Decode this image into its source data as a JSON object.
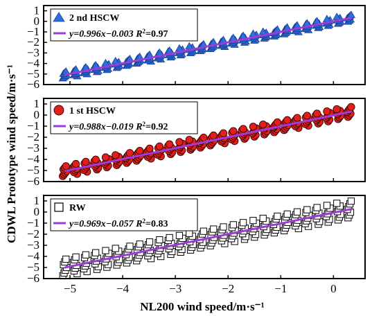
{
  "chart_data": [
    {
      "type": "scatter",
      "panel": "top",
      "series": [
        {
          "name": "2 nd HSCW",
          "marker": "triangle",
          "color": "#2e6fe0",
          "x": [
            -5.1,
            -4.9,
            -4.7,
            -4.5,
            -4.3,
            -4.1,
            -3.9,
            -3.7,
            -3.5,
            -3.3,
            -3.1,
            -2.9,
            -2.7,
            -2.5,
            -2.3,
            -2.1,
            -1.9,
            -1.7,
            -1.5,
            -1.3,
            -1.1,
            -0.9,
            -0.7,
            -0.5,
            -0.3,
            -0.1,
            0.1,
            0.3
          ],
          "y": [
            -5.1,
            -4.9,
            -4.7,
            -4.5,
            -4.3,
            -4.1,
            -3.9,
            -3.7,
            -3.5,
            -3.3,
            -3.1,
            -2.9,
            -2.7,
            -2.5,
            -2.3,
            -2.1,
            -1.9,
            -1.7,
            -1.5,
            -1.3,
            -1.1,
            -0.9,
            -0.7,
            -0.5,
            -0.3,
            -0.1,
            0.1,
            0.3
          ]
        }
      ],
      "fit": {
        "slope": 0.996,
        "intercept": -0.003,
        "color": "#9b3dd6",
        "equation": "y=0.996x−0.003",
        "r2_label": "R",
        "r2_value": "=0.97"
      },
      "y_ticks": [
        "1",
        "0",
        "−1",
        "−2",
        "−3",
        "−4",
        "−5",
        "−6"
      ],
      "ylim": [
        -6,
        1.5
      ],
      "xlim": [
        -5.5,
        0.6
      ]
    },
    {
      "type": "scatter",
      "panel": "middle",
      "series": [
        {
          "name": "1 st HSCW",
          "marker": "circle",
          "color": "#e0201b",
          "x": [
            -5.1,
            -4.9,
            -4.7,
            -4.5,
            -4.3,
            -4.1,
            -3.9,
            -3.7,
            -3.5,
            -3.3,
            -3.1,
            -2.9,
            -2.7,
            -2.5,
            -2.3,
            -2.1,
            -1.9,
            -1.7,
            -1.5,
            -1.3,
            -1.1,
            -0.9,
            -0.7,
            -0.5,
            -0.3,
            -0.1,
            0.1,
            0.3
          ],
          "y": [
            -5.1,
            -4.9,
            -4.7,
            -4.5,
            -4.3,
            -4.1,
            -3.9,
            -3.7,
            -3.5,
            -3.3,
            -3.1,
            -2.9,
            -2.7,
            -2.5,
            -2.3,
            -2.1,
            -1.9,
            -1.7,
            -1.5,
            -1.3,
            -1.1,
            -0.9,
            -0.7,
            -0.5,
            -0.3,
            -0.1,
            0.1,
            0.3
          ]
        }
      ],
      "fit": {
        "slope": 0.988,
        "intercept": -0.019,
        "color": "#9b3dd6",
        "equation": "y=0.988x−0.019",
        "r2_label": "R",
        "r2_value": "=0.92"
      },
      "y_ticks": [
        "1",
        "0",
        "−1",
        "−2",
        "−3",
        "−4",
        "−5",
        "−6"
      ],
      "ylim": [
        -6,
        1.5
      ],
      "xlim": [
        -5.5,
        0.6
      ]
    },
    {
      "type": "scatter",
      "panel": "bottom",
      "series": [
        {
          "name": "RW",
          "marker": "square",
          "color": "#000000",
          "x": [
            -5.1,
            -4.9,
            -4.7,
            -4.5,
            -4.3,
            -4.1,
            -3.9,
            -3.7,
            -3.5,
            -3.3,
            -3.1,
            -2.9,
            -2.7,
            -2.5,
            -2.3,
            -2.1,
            -1.9,
            -1.7,
            -1.5,
            -1.3,
            -1.1,
            -0.9,
            -0.7,
            -0.5,
            -0.3,
            -0.1,
            0.1,
            0.3
          ],
          "y": [
            -5.1,
            -4.9,
            -4.7,
            -4.5,
            -4.3,
            -4.1,
            -3.9,
            -3.7,
            -3.5,
            -3.3,
            -3.1,
            -2.9,
            -2.7,
            -2.5,
            -2.3,
            -2.1,
            -1.9,
            -1.7,
            -1.5,
            -1.3,
            -1.1,
            -0.9,
            -0.7,
            -0.5,
            -0.3,
            -0.1,
            0.1,
            0.3
          ]
        }
      ],
      "fit": {
        "slope": 0.969,
        "intercept": -0.057,
        "color": "#9b3dd6",
        "equation": "y=0.969x−0.057",
        "r2_label": "R",
        "r2_value": "=0.83"
      },
      "y_ticks": [
        "1",
        "0",
        "−1",
        "−2",
        "−3",
        "−4",
        "−5",
        "−6"
      ],
      "ylim": [
        -6,
        1.5
      ],
      "xlim": [
        -5.5,
        0.6
      ]
    }
  ],
  "x_ticks": [
    "−5",
    "−4",
    "−3",
    "−2",
    "−1",
    "0"
  ],
  "x_tick_values": [
    -5,
    -4,
    -3,
    -2,
    -1,
    0
  ],
  "y_tick_values": [
    1,
    0,
    -1,
    -2,
    -3,
    -4,
    -5,
    -6
  ],
  "xlabel": "NL200 wind speed/m·s⁻¹",
  "ylabel": "CDWL Prototype wind speed/m·s⁻¹"
}
